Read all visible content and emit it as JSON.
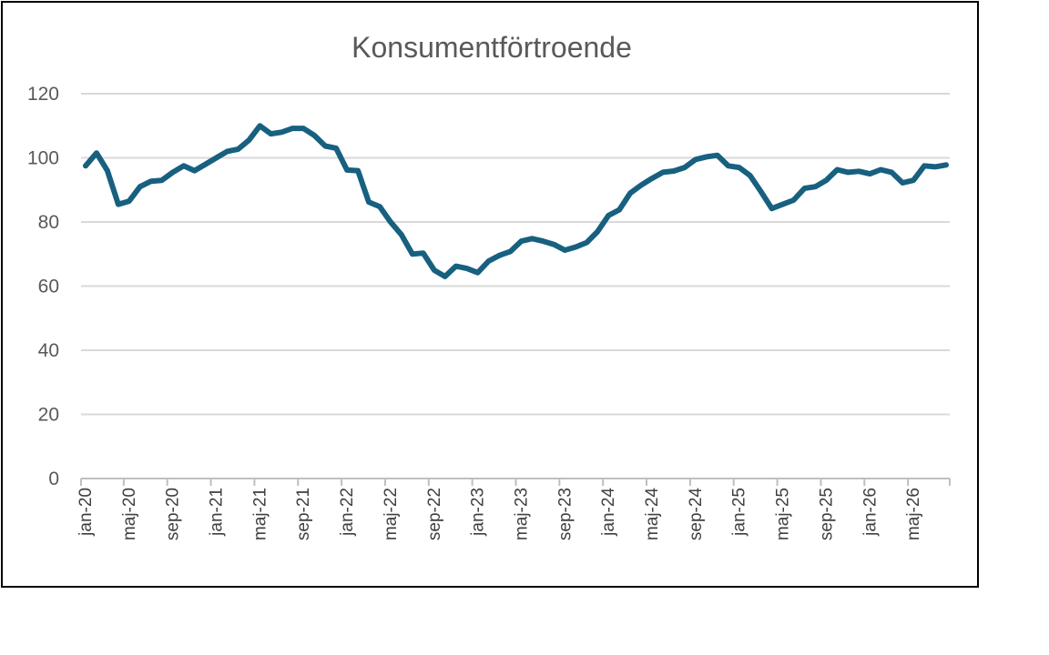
{
  "chart_data": {
    "type": "line",
    "title": "Konsumentförtroende",
    "xlabel": "",
    "ylabel": "",
    "ylim": [
      0,
      120
    ],
    "yticks": [
      0,
      20,
      40,
      60,
      80,
      100,
      120
    ],
    "grid": true,
    "legend": "none",
    "tick_labels": [
      "jan-20",
      "maj-20",
      "sep-20",
      "jan-21",
      "maj-21",
      "sep-21",
      "jan-22",
      "maj-22",
      "sep-22",
      "jan-23",
      "maj-23",
      "sep-23",
      "jan-24",
      "maj-24",
      "sep-24",
      "jan-25",
      "maj-25",
      "sep-25",
      "jan-26",
      "maj-26"
    ],
    "x": [
      "jan-20",
      "feb-20",
      "mar-20",
      "apr-20",
      "maj-20",
      "jun-20",
      "jul-20",
      "aug-20",
      "sep-20",
      "okt-20",
      "nov-20",
      "dec-20",
      "jan-21",
      "feb-21",
      "mar-21",
      "apr-21",
      "maj-21",
      "jun-21",
      "jul-21",
      "aug-21",
      "sep-21",
      "okt-21",
      "nov-21",
      "dec-21",
      "jan-22",
      "feb-22",
      "mar-22",
      "apr-22",
      "maj-22",
      "jun-22",
      "jul-22",
      "aug-22",
      "sep-22",
      "okt-22",
      "nov-22",
      "dec-22",
      "jan-23",
      "feb-23",
      "mar-23",
      "apr-23",
      "maj-23",
      "jun-23",
      "jul-23",
      "aug-23",
      "sep-23",
      "okt-23",
      "nov-23",
      "dec-23",
      "jan-24",
      "feb-24",
      "mar-24",
      "apr-24",
      "maj-24",
      "jun-24",
      "jul-24",
      "aug-24",
      "sep-24",
      "okt-24",
      "nov-24",
      "dec-24",
      "jan-25",
      "feb-25",
      "mar-25",
      "apr-25",
      "maj-25",
      "jun-25",
      "jul-25",
      "aug-25",
      "sep-25",
      "okt-25",
      "nov-25",
      "dec-25",
      "jan-26",
      "feb-26",
      "mar-26",
      "apr-26",
      "maj-26",
      "jun-26",
      "jul-26",
      "aug-26"
    ],
    "series": [
      {
        "color": "#17607f",
        "values": [
          97.5,
          101.5,
          96,
          85.5,
          86.5,
          91,
          92.7,
          93,
          95.5,
          97.5,
          96,
          98,
          100,
          102,
          102.7,
          105.5,
          110,
          107.5,
          108,
          109.2,
          109.2,
          107,
          103.7,
          103,
          96.2,
          96,
          86.2,
          84.8,
          80,
          76,
          70,
          70.3,
          65,
          63,
          66.2,
          65.5,
          64.2,
          67.8,
          69.6,
          70.8,
          74,
          74.8,
          74,
          73,
          71.2,
          72.2,
          73.6,
          77,
          82,
          83.8,
          89,
          91.5,
          93.6,
          95.5,
          95.9,
          97,
          99.5,
          100.3,
          100.8,
          97.5,
          97,
          94.5,
          89.5,
          84.2,
          85.5,
          86.8,
          90.5,
          91,
          93,
          96.3,
          95.5,
          95.8,
          95,
          96.3,
          95.5,
          92.2,
          93,
          97.5,
          97.2,
          97.8
        ]
      }
    ]
  }
}
